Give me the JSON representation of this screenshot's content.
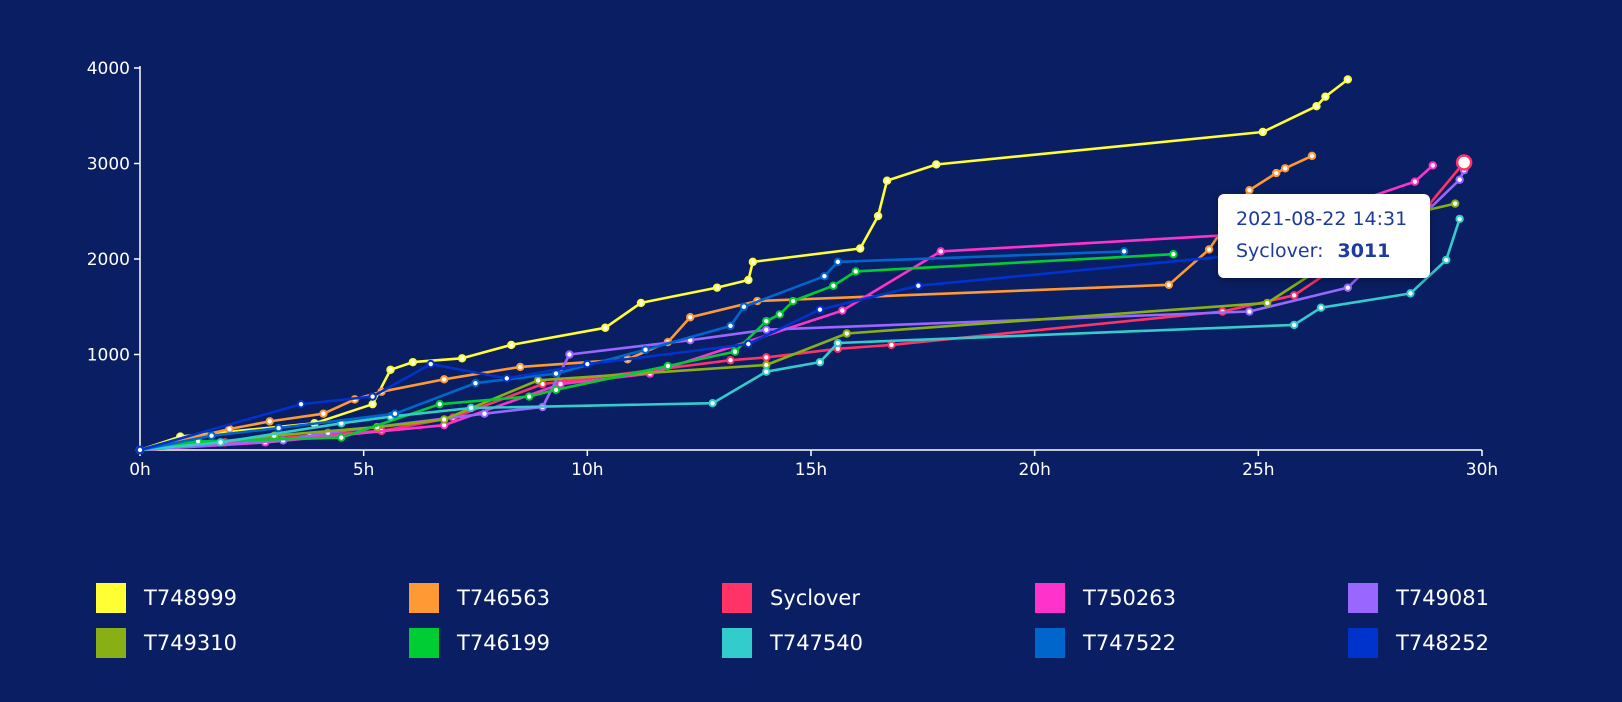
{
  "chart_data": {
    "type": "line",
    "title": "",
    "xlabel": "",
    "ylabel": "",
    "x_ticks": [
      "0h",
      "5h",
      "10h",
      "15h",
      "20h",
      "25h",
      "30h"
    ],
    "y_ticks": [
      "4000",
      "3000",
      "2000",
      "1000"
    ],
    "xlim": [
      0,
      30
    ],
    "ylim": [
      0,
      4000
    ],
    "series": [
      {
        "name": "T748999",
        "color": "#ffff33",
        "points": [
          [
            0,
            0
          ],
          [
            0.9,
            140
          ],
          [
            3.9,
            280
          ],
          [
            5.2,
            480
          ],
          [
            5.6,
            840
          ],
          [
            6.1,
            920
          ],
          [
            7.2,
            960
          ],
          [
            8.3,
            1100
          ],
          [
            10.4,
            1280
          ],
          [
            11.2,
            1540
          ],
          [
            12.9,
            1700
          ],
          [
            13.6,
            1780
          ],
          [
            13.7,
            1970
          ],
          [
            16.1,
            2110
          ],
          [
            16.5,
            2450
          ],
          [
            16.7,
            2820
          ],
          [
            17.8,
            2990
          ],
          [
            25.1,
            3330
          ],
          [
            26.3,
            3600
          ],
          [
            26.5,
            3700
          ],
          [
            27.0,
            3880
          ]
        ]
      },
      {
        "name": "T746563",
        "color": "#ff9933",
        "points": [
          [
            0,
            0
          ],
          [
            2.0,
            220
          ],
          [
            2.9,
            300
          ],
          [
            4.1,
            380
          ],
          [
            4.8,
            530
          ],
          [
            5.4,
            610
          ],
          [
            6.8,
            740
          ],
          [
            8.5,
            870
          ],
          [
            10.9,
            950
          ],
          [
            11.8,
            1130
          ],
          [
            12.3,
            1390
          ],
          [
            13.8,
            1560
          ],
          [
            23.0,
            1730
          ],
          [
            23.9,
            2100
          ],
          [
            24.8,
            2720
          ],
          [
            25.4,
            2900
          ],
          [
            25.6,
            2950
          ],
          [
            26.2,
            3080
          ]
        ]
      },
      {
        "name": "Syclover",
        "color": "#ff3366",
        "points": [
          [
            0,
            0
          ],
          [
            1.9,
            80
          ],
          [
            3.8,
            150
          ],
          [
            5.4,
            200
          ],
          [
            7.0,
            340
          ],
          [
            9.0,
            690
          ],
          [
            13.2,
            940
          ],
          [
            14.0,
            970
          ],
          [
            15.6,
            1060
          ],
          [
            16.8,
            1100
          ],
          [
            24.2,
            1450
          ],
          [
            25.8,
            1620
          ],
          [
            28.8,
            2560
          ],
          [
            29.6,
            3011
          ]
        ]
      },
      {
        "name": "T750263",
        "color": "#ff33cc",
        "points": [
          [
            0,
            0
          ],
          [
            2.8,
            80
          ],
          [
            6.8,
            260
          ],
          [
            9.4,
            690
          ],
          [
            11.4,
            800
          ],
          [
            15.7,
            1460
          ],
          [
            17.9,
            2080
          ],
          [
            25.1,
            2270
          ],
          [
            28.5,
            2810
          ],
          [
            28.9,
            2980
          ]
        ]
      },
      {
        "name": "T749081",
        "color": "#9966ff",
        "points": [
          [
            0,
            0
          ],
          [
            3.2,
            100
          ],
          [
            4.2,
            180
          ],
          [
            7.7,
            380
          ],
          [
            9.0,
            450
          ],
          [
            9.6,
            1000
          ],
          [
            12.3,
            1150
          ],
          [
            14.0,
            1260
          ],
          [
            24.8,
            1450
          ],
          [
            27.0,
            1700
          ],
          [
            29.5,
            2830
          ],
          [
            29.6,
            2930
          ]
        ]
      },
      {
        "name": "T749310",
        "color": "#88b014",
        "points": [
          [
            0,
            0
          ],
          [
            3.0,
            150
          ],
          [
            5.3,
            240
          ],
          [
            6.8,
            320
          ],
          [
            8.9,
            730
          ],
          [
            14.0,
            890
          ],
          [
            15.8,
            1220
          ],
          [
            25.2,
            1540
          ],
          [
            28.2,
            2450
          ],
          [
            29.4,
            2580
          ]
        ]
      },
      {
        "name": "T746199",
        "color": "#00cc33",
        "points": [
          [
            0,
            0
          ],
          [
            1.3,
            90
          ],
          [
            4.5,
            130
          ],
          [
            6.7,
            480
          ],
          [
            8.7,
            560
          ],
          [
            9.3,
            630
          ],
          [
            11.8,
            880
          ],
          [
            13.3,
            1030
          ],
          [
            14.0,
            1350
          ],
          [
            14.3,
            1420
          ],
          [
            14.6,
            1560
          ],
          [
            15.5,
            1720
          ],
          [
            16.0,
            1870
          ],
          [
            23.1,
            2050
          ]
        ]
      },
      {
        "name": "T747540",
        "color": "#33cccc",
        "points": [
          [
            0,
            0
          ],
          [
            1.8,
            80
          ],
          [
            4.5,
            280
          ],
          [
            5.6,
            350
          ],
          [
            7.4,
            440
          ],
          [
            12.8,
            490
          ],
          [
            14.0,
            820
          ],
          [
            15.2,
            920
          ],
          [
            15.6,
            1120
          ],
          [
            25.8,
            1310
          ],
          [
            26.4,
            1490
          ],
          [
            28.4,
            1640
          ],
          [
            29.2,
            1990
          ],
          [
            29.5,
            2420
          ]
        ]
      },
      {
        "name": "T747522",
        "color": "#0066cc",
        "points": [
          [
            0,
            0
          ],
          [
            1.6,
            150
          ],
          [
            3.1,
            230
          ],
          [
            5.7,
            380
          ],
          [
            7.5,
            700
          ],
          [
            9.3,
            800
          ],
          [
            11.3,
            1050
          ],
          [
            13.2,
            1300
          ],
          [
            13.5,
            1500
          ],
          [
            15.3,
            1820
          ],
          [
            15.6,
            1970
          ],
          [
            22.0,
            2080
          ]
        ]
      },
      {
        "name": "T748252",
        "color": "#0033cc",
        "points": [
          [
            0,
            0
          ],
          [
            3.6,
            480
          ],
          [
            5.2,
            560
          ],
          [
            6.5,
            900
          ],
          [
            8.2,
            750
          ],
          [
            10.0,
            900
          ],
          [
            13.6,
            1110
          ],
          [
            15.2,
            1470
          ],
          [
            17.4,
            1720
          ],
          [
            25.0,
            2060
          ]
        ]
      }
    ],
    "tooltip": {
      "time": "2021-08-22 14:31",
      "series": "Syclover",
      "label": "Syclover:",
      "value": "3011"
    }
  }
}
